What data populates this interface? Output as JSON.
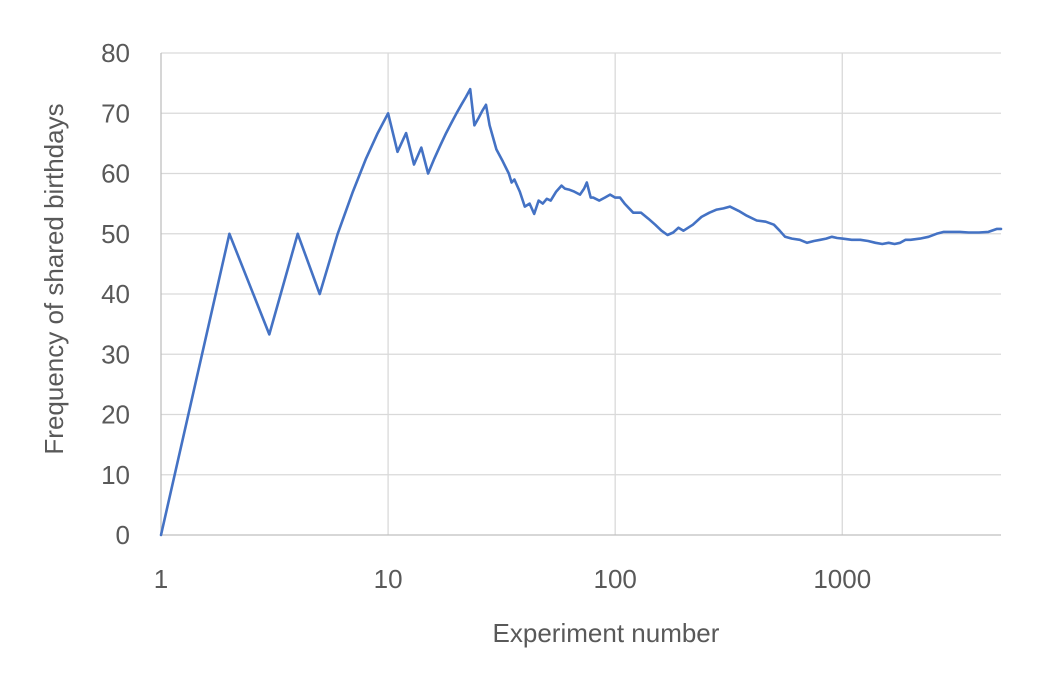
{
  "chart_data": {
    "type": "line",
    "title": "",
    "xlabel": "Experiment number",
    "ylabel": "Frequency of shared birthdays",
    "x_scale": "log",
    "xlim": [
      1,
      5000
    ],
    "ylim": [
      0,
      80
    ],
    "x_ticks": [
      1,
      10,
      100,
      1000
    ],
    "x_tick_labels": [
      "1",
      "10",
      "100",
      "1000"
    ],
    "y_ticks": [
      0,
      10,
      20,
      30,
      40,
      50,
      60,
      70,
      80
    ],
    "y_tick_labels": [
      "0",
      "10",
      "20",
      "30",
      "40",
      "50",
      "60",
      "70",
      "80"
    ],
    "grid": true,
    "legend": "none",
    "series_color": "#4472c4",
    "series": [
      {
        "x": [
          1,
          2,
          3,
          4,
          5,
          6,
          7,
          8,
          9,
          10,
          11,
          12,
          13,
          14,
          15,
          16,
          17,
          18,
          19,
          20,
          21,
          22,
          23,
          24,
          25,
          26,
          27,
          28,
          30,
          32,
          33,
          34,
          35,
          36,
          37,
          38,
          40,
          42,
          44,
          46,
          48,
          50,
          52,
          55,
          58,
          60,
          63,
          66,
          70,
          73,
          75,
          78,
          80,
          85,
          90,
          95,
          100,
          105,
          110,
          120,
          130,
          140,
          150,
          160,
          170,
          180,
          190,
          200,
          220,
          240,
          260,
          280,
          300,
          320,
          350,
          380,
          420,
          460,
          500,
          530,
          560,
          600,
          650,
          700,
          750,
          800,
          850,
          900,
          950,
          1000,
          1100,
          1200,
          1300,
          1400,
          1500,
          1600,
          1700,
          1800,
          1900,
          2000,
          2200,
          2400,
          2600,
          2800,
          3000,
          3300,
          3600,
          4000,
          4400,
          4800,
          5000
        ],
        "values": [
          0,
          50,
          33.3,
          50,
          40,
          50,
          57,
          62.5,
          66.7,
          70,
          63.6,
          66.7,
          61.5,
          64.3,
          60,
          62.5,
          64.7,
          66.7,
          68.4,
          70,
          71.4,
          72.7,
          74,
          68,
          69.2,
          70.4,
          71.4,
          68,
          64,
          62,
          61,
          60,
          58.5,
          59,
          58,
          57,
          54.5,
          55,
          53.3,
          55.5,
          55,
          55.8,
          55.5,
          57,
          58,
          57.5,
          57.3,
          57,
          56.5,
          57.5,
          58.5,
          56,
          56,
          55.5,
          56,
          56.5,
          56,
          56,
          55,
          53.5,
          53.5,
          52.5,
          51.5,
          50.5,
          49.8,
          50.2,
          51,
          50.5,
          51.5,
          52.8,
          53.5,
          54,
          54.2,
          54.5,
          53.8,
          53,
          52.2,
          52,
          51.5,
          50.5,
          49.5,
          49.2,
          49,
          48.5,
          48.8,
          49,
          49.2,
          49.5,
          49.3,
          49.2,
          49,
          49,
          48.8,
          48.5,
          48.3,
          48.5,
          48.3,
          48.5,
          49,
          49,
          49.2,
          49.5,
          50,
          50.3,
          50.3,
          50.3,
          50.2,
          50.2,
          50.3,
          50.8,
          50.8
        ]
      }
    ]
  }
}
